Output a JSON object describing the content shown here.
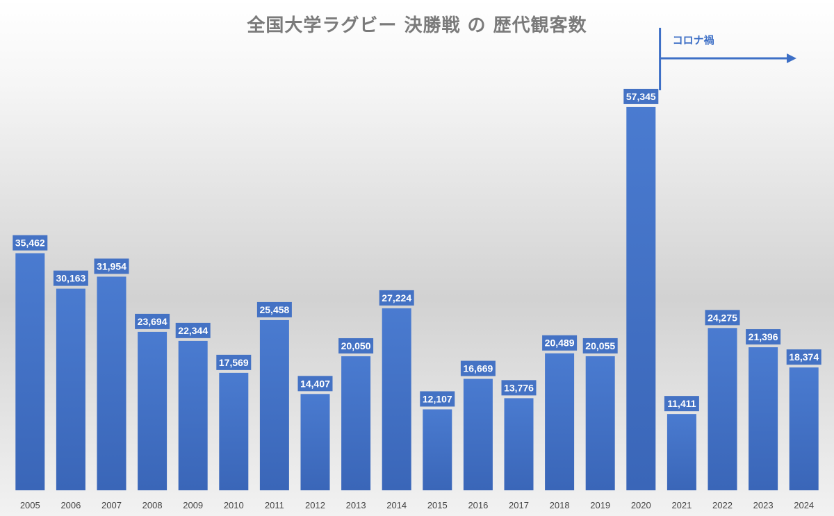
{
  "chart_data": {
    "type": "bar",
    "title": "全国大学ラグビー 決勝戦 の 歴代観客数",
    "categories": [
      "2005",
      "2006",
      "2007",
      "2008",
      "2009",
      "2010",
      "2011",
      "2012",
      "2013",
      "2014",
      "2015",
      "2016",
      "2017",
      "2018",
      "2019",
      "2020",
      "2021",
      "2022",
      "2023",
      "2024"
    ],
    "values": [
      35462,
      30163,
      31954,
      23694,
      22344,
      17569,
      25458,
      14407,
      20050,
      27224,
      12107,
      16669,
      13776,
      20489,
      20055,
      57345,
      11411,
      24275,
      21396,
      18374
    ],
    "value_labels": [
      "35,462",
      "30,163",
      "31,954",
      "23,694",
      "22,344",
      "17,569",
      "25,458",
      "14,407",
      "20,050",
      "27,224",
      "12,107",
      "16,669",
      "13,776",
      "20,489",
      "20,055",
      "57,345",
      "11,411",
      "24,275",
      "21,396",
      "18,374"
    ],
    "ylim": [
      0,
      59000
    ],
    "bar_color": "#4472c4",
    "grid": false,
    "annotation": {
      "text": "コロナ禍",
      "from_category": "2021",
      "color": "#3d6fc6"
    }
  }
}
